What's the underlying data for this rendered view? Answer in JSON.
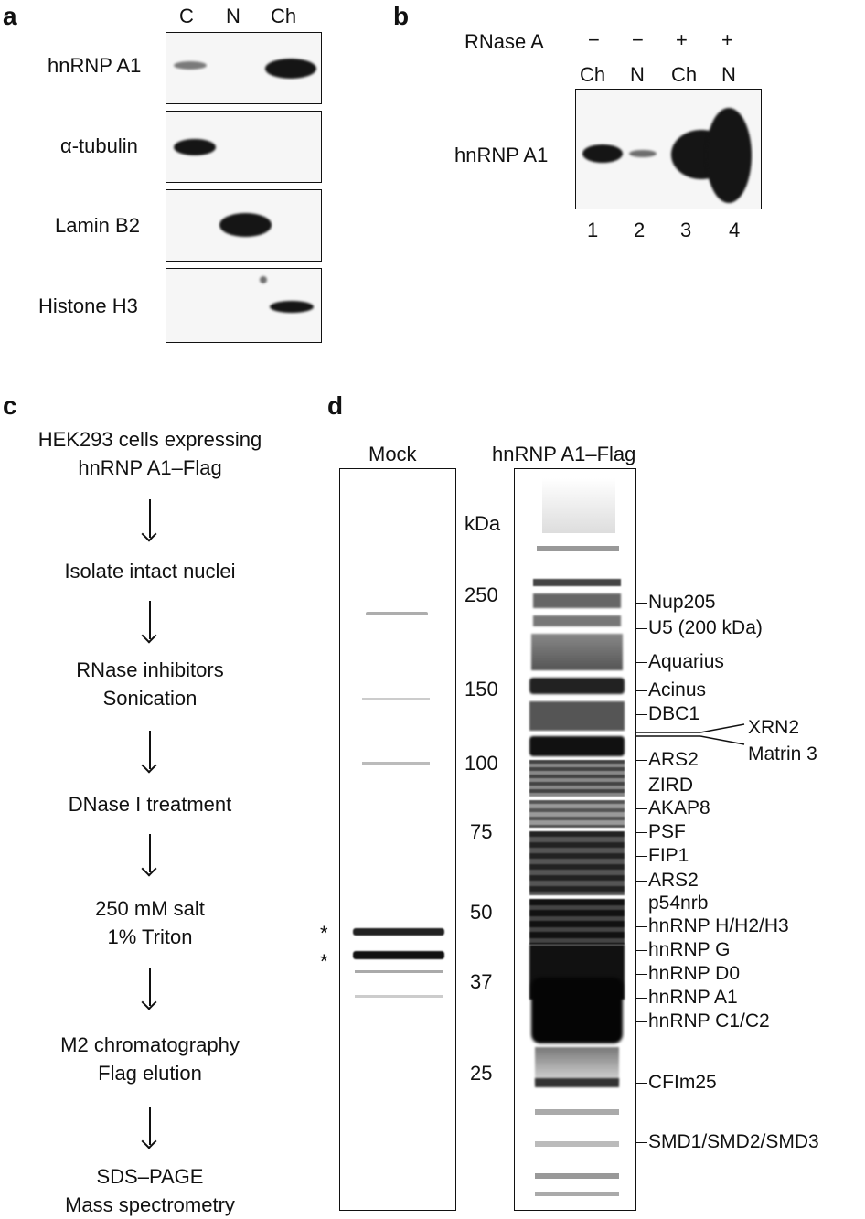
{
  "panel_a": {
    "letter": "a",
    "lanes": [
      "C",
      "N",
      "Ch"
    ],
    "blots": [
      {
        "label": "hnRNP A1"
      },
      {
        "label": "α-tubulin"
      },
      {
        "label": "Lamin B2"
      },
      {
        "label": "Histone H3"
      }
    ]
  },
  "panel_b": {
    "letter": "b",
    "treatment_label": "RNase A",
    "treatment": [
      "−",
      "−",
      "+",
      "+"
    ],
    "lanes": [
      "Ch",
      "N",
      "Ch",
      "N"
    ],
    "blot_label": "hnRNP A1",
    "lane_numbers": [
      "1",
      "2",
      "3",
      "4"
    ]
  },
  "panel_c": {
    "letter": "c",
    "steps": [
      [
        "HEK293 cells expressing",
        "hnRNP A1–Flag"
      ],
      [
        "Isolate intact nuclei"
      ],
      [
        "RNase inhibitors",
        "Sonication"
      ],
      [
        "DNase I treatment"
      ],
      [
        "250 mM salt",
        "1% Triton"
      ],
      [
        "M2 chromatography",
        "Flag elution"
      ],
      [
        "SDS–PAGE",
        "Mass spectrometry"
      ]
    ]
  },
  "panel_d": {
    "letter": "d",
    "mock_label": "Mock",
    "flag_label": "hnRNP A1–Flag",
    "kda_label": "kDa",
    "markers": [
      "250",
      "150",
      "100",
      "75",
      "50",
      "37",
      "25"
    ],
    "asterisks": [
      "*",
      "*"
    ],
    "proteins": [
      "Nup205",
      "U5 (200 kDa)",
      "Aquarius",
      "Acinus",
      "DBC1",
      "ARS2",
      "ZIRD",
      "AKAP8",
      "PSF",
      "FIP1",
      "ARS2",
      "p54nrb",
      "hnRNP H/H2/H3",
      "hnRNP G",
      "hnRNP D0",
      "hnRNP A1",
      "hnRNP C1/C2",
      "CFIm25",
      "SMD1/SMD2/SMD3"
    ],
    "callouts": [
      "XRN2",
      "Matrin 3"
    ]
  }
}
